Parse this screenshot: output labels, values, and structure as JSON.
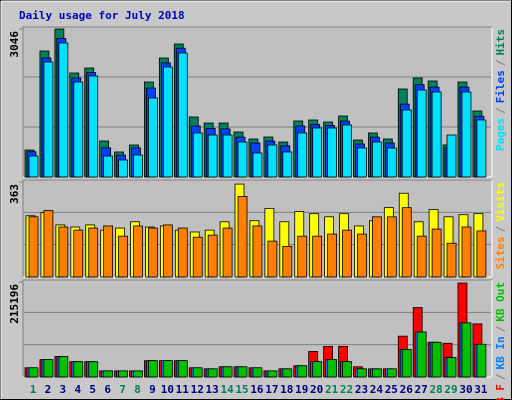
{
  "chart_data": [
    {
      "type": "bar",
      "title": "Daily usage for July 2018",
      "ylim": [
        0,
        3046
      ],
      "yticks": [
        3046
      ],
      "grid": true,
      "legend_reverse": true,
      "series": [
        {
          "name": "Hits",
          "color": "#00805c",
          "values": [
            556,
            2593,
            3046,
            2140,
            2243,
            741,
            515,
            659,
            1955,
            2449,
            2737,
            1235,
            1111,
            1111,
            926,
            782,
            823,
            720,
            1153,
            1173,
            1132,
            1255,
            761,
            906,
            782,
            1811,
            2037,
            1976,
            659,
            1955,
            1358
          ]
        },
        {
          "name": "Files",
          "color": "#0040ff",
          "values": [
            520,
            2450,
            2850,
            2037,
            2150,
            600,
            450,
            600,
            1831,
            2350,
            2650,
            1050,
            1000,
            990,
            820,
            700,
            740,
            640,
            1050,
            1080,
            1060,
            1150,
            680,
            820,
            700,
            1500,
            1900,
            1850,
            600,
            1850,
            1250
          ]
        },
        {
          "name": "Pages",
          "color": "#00e0ff",
          "values": [
            432,
            2367,
            2758,
            1955,
            2079,
            432,
            350,
            453,
            1626,
            2264,
            2552,
            906,
            864,
            864,
            720,
            494,
            659,
            515,
            906,
            1008,
            1008,
            1070,
            597,
            720,
            597,
            1379,
            1790,
            1749,
            864,
            1749,
            1173
          ]
        }
      ]
    },
    {
      "type": "bar",
      "ylim": [
        0,
        363
      ],
      "yticks": [
        363
      ],
      "grid": true,
      "legend_reverse": true,
      "series": [
        {
          "name": "Visits",
          "color": "#ffff00",
          "values": [
            234,
            246,
            199,
            191,
            199,
            179,
            187,
            211,
            191,
            195,
            179,
            172,
            179,
            211,
            355,
            215,
            262,
            211,
            250,
            242,
            230,
            242,
            195,
            215,
            265,
            320,
            211,
            258,
            230,
            238,
            242
          ]
        },
        {
          "name": "Sites",
          "color": "#ff8000",
          "values": [
            230,
            254,
            191,
            179,
            187,
            195,
            156,
            195,
            187,
            199,
            187,
            152,
            160,
            187,
            308,
            195,
            137,
            117,
            156,
            156,
            164,
            179,
            164,
            230,
            230,
            265,
            156,
            183,
            129,
            191,
            176
          ]
        }
      ]
    },
    {
      "type": "bar",
      "ylim": [
        0,
        215196
      ],
      "yticks": [
        215196
      ],
      "grid": true,
      "legend_reverse": false,
      "legend_separator": "/",
      "categories": [
        "1",
        "2",
        "3",
        "4",
        "5",
        "6",
        "7",
        "8",
        "9",
        "10",
        "11",
        "12",
        "13",
        "14",
        "15",
        "16",
        "17",
        "18",
        "19",
        "20",
        "21",
        "22",
        "23",
        "24",
        "25",
        "26",
        "27",
        "28",
        "29",
        "30",
        "31"
      ],
      "category_colors": [
        "#00805c",
        "#000080",
        "#000080",
        "#000080",
        "#000080",
        "#000080",
        "#00805c",
        "#00805c",
        "#000080",
        "#000080",
        "#000080",
        "#000080",
        "#000080",
        "#00805c",
        "#00805c",
        "#000080",
        "#000080",
        "#000080",
        "#000080",
        "#000080",
        "#00805c",
        "#00805c",
        "#000080",
        "#000080",
        "#000080",
        "#000080",
        "#000080",
        "#00805c",
        "#00805c",
        "#000080",
        "#000080"
      ],
      "series": [
        {
          "name": "KB F",
          "color": "#ff0000",
          "values": [
            20826,
            39338,
            46280,
            34710,
            34710,
            13884,
            13884,
            13884,
            37024,
            37024,
            37024,
            20826,
            18512,
            23140,
            23140,
            20826,
            13884,
            18512,
            25454,
            57850,
            69420,
            69420,
            23140,
            18512,
            18512,
            92560,
            157352,
            78676,
            76362,
            212888,
            120328
          ]
        },
        {
          "name": "KB In",
          "color": "#0080ff",
          "values": [
            20826,
            39338,
            46280,
            34710,
            34710,
            13884,
            13884,
            13884,
            37024,
            37024,
            37024,
            20826,
            18512,
            23140,
            23140,
            20826,
            13884,
            18512,
            25454,
            34710,
            39338,
            34710,
            18512,
            18512,
            18512,
            62478,
            101816,
            78676,
            43966,
            122642,
            74048
          ]
        },
        {
          "name": "KB Out",
          "color": "#00c000",
          "values": [
            20826,
            39338,
            46280,
            34710,
            34710,
            13884,
            13884,
            13884,
            37024,
            37024,
            37024,
            20826,
            18512,
            23140,
            23140,
            20826,
            13884,
            18512,
            25454,
            34710,
            39338,
            34710,
            18512,
            18512,
            18512,
            62478,
            101816,
            78676,
            43966,
            122642,
            74048
          ]
        }
      ]
    }
  ]
}
